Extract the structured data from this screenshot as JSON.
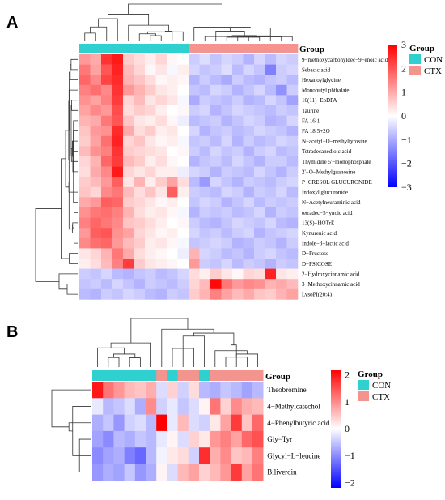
{
  "chart_data": [
    {
      "type": "heatmap",
      "panel_label": "A",
      "annotation_title": "Group",
      "groups_legend": {
        "title": "Group",
        "entries": [
          {
            "name": "CON",
            "color": "#2fd0d0"
          },
          {
            "name": "CTX",
            "color": "#f4948e"
          }
        ]
      },
      "colorbar": {
        "ticks": [
          3,
          2,
          1,
          0,
          -1,
          -2,
          -3
        ],
        "range": [
          -3,
          3
        ],
        "low_color": "#0000ff",
        "mid_color": "#ffffff",
        "high_color": "#ff0000"
      },
      "columns_group": [
        "CON",
        "CON",
        "CON",
        "CON",
        "CON",
        "CON",
        "CON",
        "CON",
        "CON",
        "CON",
        "CTX",
        "CTX",
        "CTX",
        "CTX",
        "CTX",
        "CTX",
        "CTX",
        "CTX",
        "CTX",
        "CTX"
      ],
      "rows": [
        "9−methoxycarbonyldec−9−enoic acid",
        "Sebacic acid",
        "Hexanoylglycine",
        "Monobutyl phthalate",
        "10(11)−EpDPA",
        "Taurine",
        "FA 16:1",
        "FA 18:5+2O",
        "N−acetyl−O−methyltyrosine",
        "Tetradecanedioic acid",
        "Thymidine 5'−monophosphate",
        "2'−O−Methylguanosine",
        "P−CRESOL GLUCURONIDE",
        "Indoxyl glucuronide",
        "N−Acetylneuraminic acid",
        "tetradec−5−ynoic acid",
        "13(S)−HOTrE",
        "Kynurenic acid",
        "Indole−3−lactic acid",
        "D−Fructose",
        "D−PSICOSE",
        "2−Hydroxycinnamic acid",
        "3−Methoxycinnamic acid",
        "LysoPI(20:4)"
      ],
      "values": [
        [
          1.2,
          1.0,
          2.4,
          2.7,
          0.6,
          0.4,
          0.2,
          0.5,
          0.1,
          0.0,
          -0.6,
          -0.4,
          -0.7,
          -0.5,
          -0.6,
          -0.9,
          -0.5,
          -0.8,
          -0.5,
          -0.6
        ],
        [
          1.6,
          1.1,
          2.0,
          2.6,
          0.8,
          0.5,
          0.1,
          0.3,
          -0.1,
          0.2,
          -0.5,
          -0.7,
          -0.6,
          -0.4,
          -0.8,
          -0.5,
          -0.7,
          -1.5,
          -0.6,
          -0.5
        ],
        [
          1.8,
          1.4,
          2.2,
          2.5,
          0.9,
          0.7,
          0.4,
          0.1,
          0.2,
          0.1,
          -0.9,
          -0.6,
          -0.8,
          -1.0,
          -0.6,
          -0.8,
          -0.9,
          -0.7,
          -0.6,
          -0.8
        ],
        [
          1.5,
          1.7,
          1.4,
          2.4,
          1.2,
          0.9,
          0.6,
          0.3,
          0.2,
          0.0,
          -0.7,
          -0.8,
          -0.5,
          -0.6,
          -0.9,
          -0.7,
          -0.5,
          -0.8,
          -1.3,
          -0.6
        ],
        [
          1.3,
          1.1,
          1.5,
          2.3,
          0.5,
          0.8,
          0.3,
          0.5,
          0.3,
          -0.1,
          -1.0,
          -0.6,
          -0.7,
          -0.8,
          -0.6,
          -0.9,
          -0.8,
          -0.5,
          -0.7,
          -1.1
        ],
        [
          1.1,
          1.4,
          1.2,
          2.1,
          0.4,
          0.6,
          0.5,
          0.2,
          0.0,
          0.1,
          -0.6,
          -0.5,
          -0.9,
          -0.7,
          -0.5,
          -0.6,
          -0.7,
          -0.8,
          -0.6,
          -0.7
        ],
        [
          0.9,
          1.0,
          1.6,
          2.0,
          0.7,
          0.3,
          0.2,
          0.4,
          0.1,
          -0.2,
          -0.8,
          -0.7,
          -0.6,
          -0.9,
          -0.7,
          -0.5,
          -0.6,
          -0.9,
          -0.8,
          -0.5
        ],
        [
          0.7,
          1.2,
          1.3,
          2.5,
          1.0,
          0.4,
          0.6,
          0.2,
          0.3,
          0.0,
          -0.5,
          -0.9,
          -0.7,
          -0.6,
          -0.8,
          -0.7,
          -0.5,
          -0.6,
          -0.7,
          -0.9
        ],
        [
          0.6,
          1.1,
          1.7,
          2.6,
          0.5,
          0.7,
          0.3,
          0.1,
          0.2,
          -0.1,
          -0.7,
          -0.6,
          -0.8,
          -0.5,
          -0.9,
          -0.6,
          -0.8,
          -0.7,
          -0.5,
          -0.6
        ],
        [
          0.8,
          1.3,
          1.5,
          2.4,
          0.6,
          0.5,
          0.4,
          0.3,
          0.0,
          0.1,
          -0.6,
          -0.8,
          -0.5,
          -0.7,
          -0.6,
          -0.9,
          -0.6,
          -0.5,
          -0.8,
          -0.7
        ],
        [
          0.5,
          0.9,
          1.8,
          2.3,
          0.8,
          0.6,
          0.2,
          0.4,
          0.1,
          0.0,
          -0.9,
          -0.7,
          -0.6,
          -0.8,
          -0.5,
          -0.7,
          -0.9,
          -0.6,
          -0.6,
          -0.8
        ],
        [
          0.4,
          1.0,
          1.4,
          2.7,
          0.5,
          0.3,
          0.5,
          0.2,
          0.2,
          -0.2,
          -0.5,
          -0.6,
          -0.9,
          -0.6,
          -0.7,
          -0.8,
          -0.5,
          -0.7,
          -0.9,
          -0.6
        ],
        [
          0.6,
          0.8,
          1.2,
          1.9,
          0.3,
          0.9,
          0.2,
          0.6,
          1.1,
          0.4,
          -0.8,
          -1.2,
          -0.5,
          -0.7,
          -0.9,
          -0.6,
          -0.7,
          -0.8,
          -0.6,
          -0.5
        ],
        [
          0.7,
          0.5,
          1.4,
          1.6,
          0.8,
          0.4,
          0.7,
          0.3,
          1.9,
          0.2,
          -0.6,
          -0.7,
          -0.8,
          -0.5,
          -0.6,
          -0.9,
          -0.6,
          -0.7,
          -0.5,
          -0.8
        ],
        [
          1.0,
          1.2,
          1.9,
          1.8,
          0.6,
          0.5,
          0.3,
          0.1,
          0.2,
          0.0,
          -0.7,
          -0.5,
          -0.6,
          -0.9,
          -0.7,
          -0.5,
          -0.8,
          -0.6,
          -0.7,
          -0.6
        ],
        [
          1.3,
          1.6,
          1.7,
          1.5,
          0.9,
          0.4,
          0.2,
          0.3,
          0.1,
          -0.1,
          -0.9,
          -0.6,
          -0.7,
          -0.6,
          -0.8,
          -0.7,
          -0.5,
          -0.9,
          -0.6,
          -0.7
        ],
        [
          1.5,
          1.8,
          1.6,
          1.4,
          0.7,
          0.6,
          0.4,
          0.2,
          0.0,
          0.1,
          -0.6,
          -0.8,
          -0.9,
          -0.7,
          -0.5,
          -0.6,
          -0.7,
          -0.5,
          -0.8,
          -0.9
        ],
        [
          1.2,
          1.9,
          2.0,
          1.3,
          1.1,
          0.5,
          0.3,
          0.1,
          0.2,
          0.0,
          -0.5,
          -0.7,
          -0.6,
          -0.8,
          -0.6,
          -0.5,
          -0.9,
          -0.7,
          -0.6,
          -0.5
        ],
        [
          1.4,
          1.7,
          1.8,
          1.2,
          0.8,
          0.6,
          0.2,
          0.3,
          0.1,
          -0.1,
          -0.7,
          -0.6,
          -0.5,
          -0.6,
          -0.9,
          -0.8,
          -0.6,
          -0.7,
          -0.9,
          -0.6
        ],
        [
          0.3,
          0.5,
          0.9,
          1.6,
          1.0,
          0.4,
          0.2,
          0.1,
          0.0,
          -0.2,
          0.9,
          -0.5,
          -0.6,
          -0.8,
          -0.7,
          -0.9,
          -0.6,
          -0.5,
          -0.7,
          -0.8
        ],
        [
          0.2,
          0.4,
          0.8,
          1.5,
          2.3,
          0.6,
          0.3,
          0.2,
          0.1,
          0.0,
          1.2,
          -0.6,
          -0.7,
          -0.5,
          -0.8,
          -0.6,
          -0.7,
          -0.9,
          -0.6,
          -0.7
        ],
        [
          -0.6,
          -0.7,
          -0.5,
          -0.8,
          -0.9,
          -0.7,
          -0.6,
          -0.8,
          -0.7,
          -0.5,
          0.4,
          0.2,
          0.6,
          0.3,
          0.1,
          0.5,
          0.4,
          2.6,
          0.3,
          0.2
        ],
        [
          -0.7,
          -0.6,
          -0.8,
          -0.5,
          -0.7,
          -0.9,
          -0.6,
          -0.7,
          -0.8,
          -0.6,
          0.5,
          0.8,
          2.9,
          1.6,
          1.2,
          1.4,
          1.3,
          0.9,
          1.0,
          0.8
        ],
        [
          -0.8,
          -0.9,
          -0.6,
          -0.7,
          -0.5,
          -0.6,
          -0.8,
          -0.9,
          -0.6,
          -0.7,
          0.6,
          0.9,
          1.5,
          1.1,
          0.8,
          1.0,
          0.7,
          0.6,
          0.9,
          1.1
        ]
      ]
    },
    {
      "type": "heatmap",
      "panel_label": "B",
      "annotation_title": "Group",
      "groups_legend": {
        "title": "Group",
        "entries": [
          {
            "name": "CON",
            "color": "#2fd0d0"
          },
          {
            "name": "CTX",
            "color": "#f4948e"
          }
        ]
      },
      "colorbar": {
        "ticks": [
          2,
          1,
          0,
          -1,
          -2
        ],
        "range": [
          -2.2,
          2.2
        ],
        "low_color": "#0000ff",
        "mid_color": "#ffffff",
        "high_color": "#ff0000"
      },
      "columns_group": [
        "CON",
        "CON",
        "CON",
        "CON",
        "CON",
        "CON",
        "CTX",
        "CON",
        "CTX",
        "CTX",
        "CON",
        "CTX",
        "CTX",
        "CTX",
        "CTX",
        "CTX"
      ],
      "rows": [
        "Theobromine",
        "4−Methylcatechol",
        "4−Phenylbutyric acid",
        "Gly−Tyr",
        "Glycyl−L−leucine",
        "Biliverdin"
      ],
      "values": [
        [
          2.0,
          1.2,
          0.9,
          0.6,
          0.5,
          0.7,
          -0.3,
          0.4,
          -0.4,
          0.3,
          -0.6,
          -0.7,
          -0.5,
          -0.6,
          -0.8,
          -0.6
        ],
        [
          -0.2,
          -0.6,
          -0.5,
          -0.3,
          -0.7,
          1.0,
          -0.4,
          -0.2,
          -0.5,
          -0.3,
          0.1,
          1.2,
          0.4,
          1.0,
          0.7,
          0.6
        ],
        [
          -0.7,
          -0.5,
          -0.9,
          -0.4,
          -0.3,
          -0.6,
          2.2,
          -0.2,
          0.6,
          -0.3,
          -0.4,
          0.2,
          0.8,
          1.7,
          0.5,
          1.3
        ],
        [
          -0.8,
          -1.0,
          -0.6,
          -0.7,
          -0.5,
          -0.6,
          -0.2,
          0.1,
          -0.3,
          0.4,
          0.2,
          0.9,
          1.1,
          0.8,
          1.3,
          1.5
        ],
        [
          -1.0,
          -0.8,
          -0.7,
          -1.1,
          -1.3,
          -0.6,
          -0.1,
          0.2,
          0.3,
          -0.4,
          1.8,
          0.7,
          1.0,
          0.5,
          0.6,
          1.1
        ],
        [
          -0.9,
          -0.7,
          -0.8,
          -0.5,
          -0.9,
          -0.7,
          0.1,
          -0.3,
          0.6,
          0.8,
          0.4,
          0.6,
          0.9,
          1.7,
          0.8,
          1.2
        ]
      ]
    }
  ]
}
